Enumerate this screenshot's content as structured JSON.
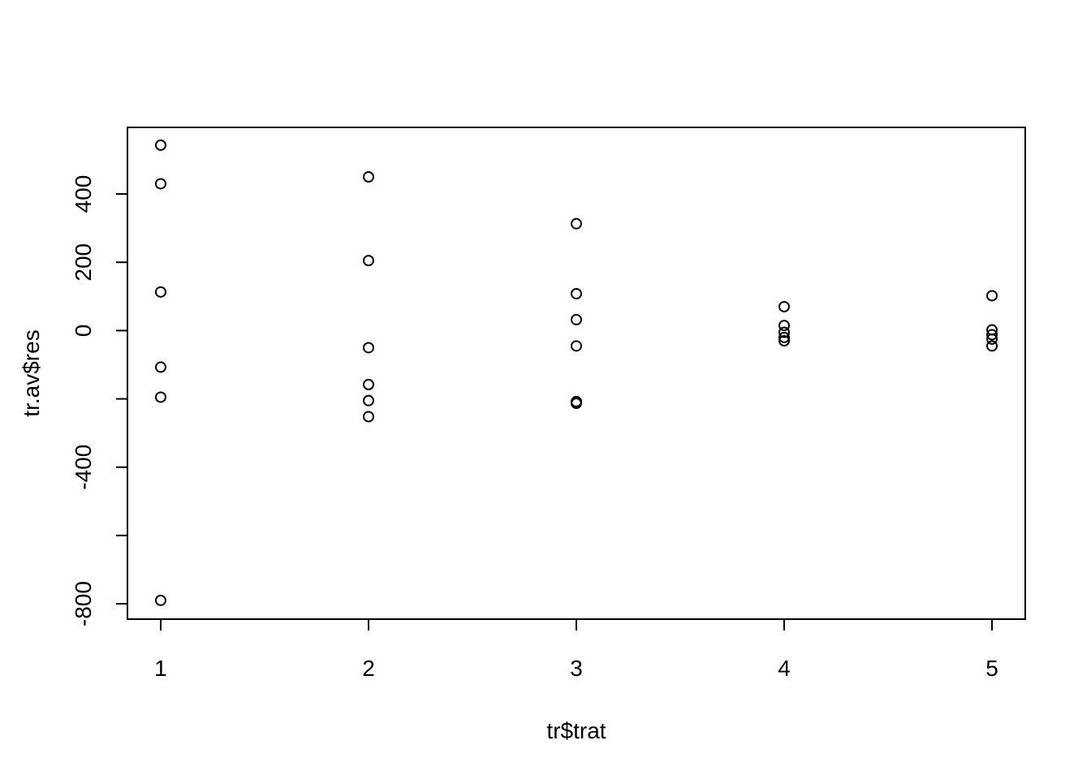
{
  "chart_data": {
    "type": "scatter",
    "title": "",
    "xlabel": "tr$trat",
    "ylabel": "tr.av$res",
    "xlim": [
      0.84,
      5.16
    ],
    "ylim": [
      -845,
      595
    ],
    "x_ticks": [
      1,
      2,
      3,
      4,
      5
    ],
    "y_ticks": [
      -800,
      -600,
      -400,
      -200,
      0,
      200,
      400
    ],
    "y_tick_labels": [
      "-800",
      "",
      "-400",
      "",
      "0",
      "200",
      "400"
    ],
    "grid": false,
    "legend": "none",
    "marker": "open-circle",
    "color": "#000000",
    "points": [
      {
        "x": 1,
        "y": 543
      },
      {
        "x": 1,
        "y": 430
      },
      {
        "x": 1,
        "y": 113
      },
      {
        "x": 1,
        "y": -107
      },
      {
        "x": 1,
        "y": -195
      },
      {
        "x": 1,
        "y": -790
      },
      {
        "x": 2,
        "y": 450
      },
      {
        "x": 2,
        "y": 205
      },
      {
        "x": 2,
        "y": -50
      },
      {
        "x": 2,
        "y": -158
      },
      {
        "x": 2,
        "y": -205
      },
      {
        "x": 2,
        "y": -252
      },
      {
        "x": 3,
        "y": 313
      },
      {
        "x": 3,
        "y": 108
      },
      {
        "x": 3,
        "y": 32
      },
      {
        "x": 3,
        "y": -45
      },
      {
        "x": 3,
        "y": -208
      },
      {
        "x": 3,
        "y": -213
      },
      {
        "x": 4,
        "y": 70
      },
      {
        "x": 4,
        "y": 15
      },
      {
        "x": 4,
        "y": -5
      },
      {
        "x": 4,
        "y": -20
      },
      {
        "x": 4,
        "y": -30
      },
      {
        "x": 5,
        "y": 102
      },
      {
        "x": 5,
        "y": 2
      },
      {
        "x": 5,
        "y": -12
      },
      {
        "x": 5,
        "y": -25
      },
      {
        "x": 5,
        "y": -45
      }
    ]
  }
}
